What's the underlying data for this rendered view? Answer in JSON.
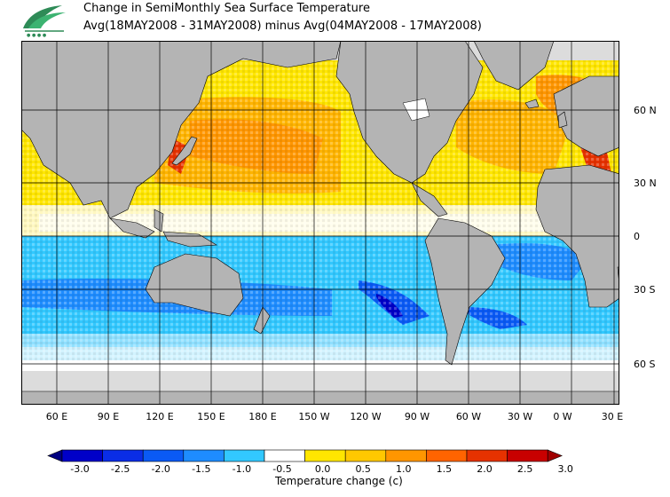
{
  "title": {
    "line1": "Change in SemiMonthly Sea Surface Temperature",
    "line2": "Avg(18MAY2008 - 31MAY2008) minus Avg(04MAY2008 - 17MAY2008)"
  },
  "map": {
    "lat_labels": [
      "60 N",
      "30 N",
      "0",
      "30 S",
      "60 S"
    ],
    "lon_labels": [
      "60 E",
      "90 E",
      "120 E",
      "150 E",
      "180 E",
      "150 W",
      "120 W",
      "90 W",
      "60 W",
      "30 W",
      "0 W",
      "30 E"
    ]
  },
  "colorbar": {
    "title": "Temperature change  (c)",
    "tick_labels": [
      "-3.0",
      "-2.5",
      "-2.0",
      "-1.5",
      "-1.0",
      "-0.5",
      "0.0",
      "0.5",
      "1.0",
      "1.5",
      "2.0",
      "2.5",
      "3.0"
    ],
    "colors": [
      "#000080",
      "#0000c8",
      "#0a2de6",
      "#0a5af5",
      "#1e8cff",
      "#32c8ff",
      "#ffffff",
      "#ffe600",
      "#ffc800",
      "#ff9600",
      "#ff6400",
      "#e63200",
      "#c80000",
      "#a00000"
    ]
  },
  "colors": {
    "land": "#b4b4b4",
    "ice": "#dcdcdc",
    "grid": "#000000"
  },
  "icons": {
    "logo": "wave-leaf-logo-icon"
  }
}
